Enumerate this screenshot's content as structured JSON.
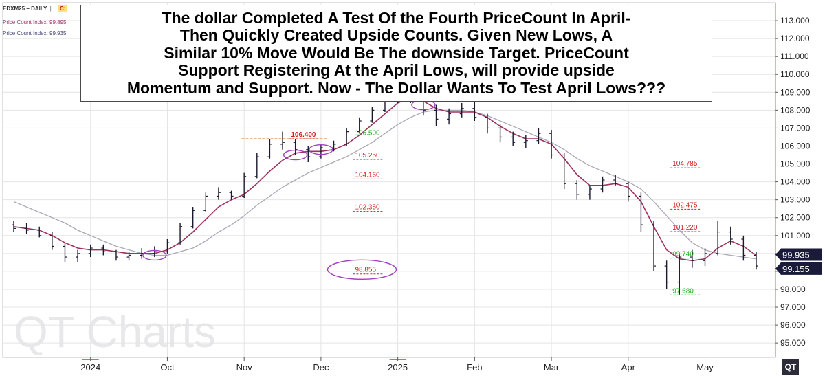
{
  "header": {
    "symbol": "EDXM25 ~ DAILY",
    "tag": "C:",
    "indicators": [
      {
        "label": "Price Count Index: 99.895",
        "color": "#9a3a6a"
      },
      {
        "label": "Price Count Index: 99.935",
        "color": "#4a4a7a"
      }
    ]
  },
  "annotation": {
    "text": "The dollar Completed A Test Of the Fourth PriceCount In April-\nThen Quickly Created Upside Counts.  Given New Lows,  A\nSimilar 10% Move Would Be The downside Target.  PriceCount\nSupport Registering At the April Lows, will provide upside\nMomentum and  Support. Now - The Dollar Wants To Test April Lows???"
  },
  "watermark": "QT Charts",
  "logo": "QT",
  "colors": {
    "bars": "#1a1a2e",
    "fast_ma": "#a0305e",
    "slow_ma": "#a8a8b8",
    "circle": "#a040c0",
    "level_red": "#d02020",
    "level_green": "#20b020",
    "tag_fill": "#1a1a3a"
  },
  "chart_data": {
    "type": "ohlc",
    "ylim": [
      94.2,
      114.0
    ],
    "y_ticks": [
      "113.000",
      "112.000",
      "111.000",
      "110.000",
      "109.000",
      "108.000",
      "107.000",
      "106.000",
      "105.000",
      "104.000",
      "103.000",
      "102.000",
      "101.000",
      "100.000",
      "99.000",
      "98.000",
      "97.000",
      "96.000",
      "95.000"
    ],
    "x_ticks": [
      {
        "label": "2024",
        "i": 6,
        "year": true
      },
      {
        "label": "Oct",
        "i": 12
      },
      {
        "label": "Nov",
        "i": 18
      },
      {
        "label": "Dec",
        "i": 24
      },
      {
        "label": "2025",
        "i": 30,
        "year": true
      },
      {
        "label": "Feb",
        "i": 36
      },
      {
        "label": "Mar",
        "i": 42
      },
      {
        "label": "Apr",
        "i": 48
      },
      {
        "label": "May",
        "i": 54
      }
    ],
    "bars": [
      [
        101.6,
        101.8,
        101.2,
        101.4
      ],
      [
        101.4,
        101.7,
        101.1,
        101.3
      ],
      [
        101.3,
        101.5,
        100.9,
        101.0
      ],
      [
        101.0,
        101.2,
        100.2,
        100.4
      ],
      [
        100.4,
        100.6,
        99.5,
        99.8
      ],
      [
        99.8,
        100.2,
        99.5,
        100.0
      ],
      [
        100.0,
        100.5,
        99.8,
        100.3
      ],
      [
        100.3,
        100.5,
        99.9,
        100.1
      ],
      [
        100.1,
        100.2,
        99.6,
        99.8
      ],
      [
        99.8,
        100.1,
        99.6,
        99.9
      ],
      [
        99.9,
        100.3,
        99.7,
        100.0
      ],
      [
        100.0,
        100.4,
        99.8,
        100.1
      ],
      [
        100.1,
        100.8,
        100.0,
        100.6
      ],
      [
        100.6,
        101.7,
        100.5,
        101.5
      ],
      [
        101.5,
        102.6,
        101.4,
        102.4
      ],
      [
        102.4,
        103.4,
        102.3,
        103.2
      ],
      [
        103.2,
        103.7,
        103.0,
        103.4
      ],
      [
        103.4,
        103.5,
        103.0,
        103.2
      ],
      [
        103.2,
        104.5,
        103.1,
        104.3
      ],
      [
        104.3,
        105.6,
        104.2,
        105.4
      ],
      [
        105.4,
        106.4,
        105.3,
        106.1
      ],
      [
        106.1,
        106.8,
        105.8,
        106.2
      ],
      [
        106.2,
        106.4,
        105.5,
        105.8
      ],
      [
        105.8,
        106.0,
        105.1,
        105.4
      ],
      [
        105.4,
        106.1,
        105.3,
        105.9
      ],
      [
        105.9,
        106.3,
        105.7,
        106.1
      ],
      [
        106.1,
        107.0,
        106.0,
        106.8
      ],
      [
        106.8,
        107.6,
        106.7,
        107.4
      ],
      [
        107.4,
        108.2,
        107.3,
        108.0
      ],
      [
        108.0,
        108.8,
        107.9,
        108.5
      ],
      [
        108.5,
        109.4,
        108.4,
        109.0
      ],
      [
        109.0,
        109.6,
        108.4,
        108.7
      ],
      [
        108.7,
        108.9,
        107.7,
        108.0
      ],
      [
        108.0,
        108.3,
        107.1,
        107.5
      ],
      [
        107.5,
        108.1,
        107.2,
        107.8
      ],
      [
        107.8,
        108.4,
        107.6,
        108.1
      ],
      [
        108.1,
        108.5,
        107.4,
        107.6
      ],
      [
        107.6,
        107.8,
        106.7,
        107.0
      ],
      [
        107.0,
        107.2,
        106.2,
        106.5
      ],
      [
        106.5,
        106.8,
        106.0,
        106.2
      ],
      [
        106.2,
        106.6,
        105.9,
        106.3
      ],
      [
        106.3,
        107.0,
        106.1,
        106.7
      ],
      [
        106.7,
        106.9,
        105.3,
        105.5
      ],
      [
        105.5,
        105.6,
        103.6,
        103.9
      ],
      [
        103.9,
        104.1,
        103.0,
        103.3
      ],
      [
        103.3,
        103.8,
        103.0,
        103.6
      ],
      [
        103.6,
        104.3,
        103.4,
        104.1
      ],
      [
        104.1,
        104.4,
        103.8,
        103.9
      ],
      [
        103.9,
        104.0,
        102.9,
        103.2
      ],
      [
        103.2,
        103.4,
        101.2,
        101.6
      ],
      [
        101.6,
        101.8,
        99.0,
        99.3
      ],
      [
        99.3,
        99.6,
        98.0,
        98.4
      ],
      [
        98.4,
        100.0,
        97.7,
        99.8
      ],
      [
        99.8,
        100.2,
        99.2,
        99.6
      ],
      [
        99.6,
        100.3,
        99.3,
        100.0
      ],
      [
        100.0,
        101.8,
        99.9,
        101.2
      ],
      [
        101.2,
        101.5,
        100.5,
        100.8
      ],
      [
        100.8,
        101.0,
        99.6,
        99.9
      ],
      [
        99.9,
        100.1,
        99.1,
        99.3
      ]
    ],
    "fast_ma": [
      101.5,
      101.4,
      101.3,
      101.0,
      100.6,
      100.3,
      100.2,
      100.2,
      100.1,
      100.0,
      100.0,
      100.0,
      100.2,
      100.6,
      101.2,
      101.9,
      102.6,
      103.0,
      103.3,
      103.9,
      104.6,
      105.2,
      105.6,
      105.7,
      105.7,
      105.8,
      106.1,
      106.6,
      107.2,
      107.8,
      108.4,
      108.7,
      108.5,
      108.1,
      107.9,
      107.9,
      107.9,
      107.6,
      107.1,
      106.7,
      106.4,
      106.4,
      106.1,
      105.3,
      104.4,
      103.8,
      103.8,
      103.9,
      103.7,
      102.9,
      101.5,
      100.2,
      99.7,
      99.6,
      99.7,
      100.3,
      100.7,
      100.4,
      99.9
    ],
    "slow_ma": [
      102.9,
      102.6,
      102.3,
      102.0,
      101.7,
      101.3,
      101.0,
      100.7,
      100.4,
      100.2,
      100.0,
      99.9,
      99.9,
      100.1,
      100.3,
      100.7,
      101.2,
      101.6,
      102.1,
      102.7,
      103.2,
      103.7,
      104.1,
      104.5,
      104.8,
      105.1,
      105.4,
      105.8,
      106.2,
      106.7,
      107.2,
      107.6,
      107.9,
      108.0,
      108.0,
      108.0,
      107.9,
      107.7,
      107.4,
      107.1,
      106.8,
      106.5,
      106.2,
      105.8,
      105.3,
      104.9,
      104.6,
      104.3,
      104.0,
      103.6,
      102.9,
      102.1,
      101.3,
      100.6,
      100.2,
      100.0,
      99.9,
      99.8,
      99.7
    ],
    "last_price_tags": [
      "99.935",
      "99.155"
    ],
    "level_labels": [
      {
        "text": "106.400",
        "price": 106.4,
        "color": "red",
        "i": 21.5,
        "bold": true
      },
      {
        "text": "106.500",
        "price": 106.5,
        "color": "green",
        "i": 26.5
      },
      {
        "text": "105.250",
        "price": 105.25,
        "color": "red",
        "i": 26.5
      },
      {
        "text": "104.160",
        "price": 104.16,
        "color": "red",
        "i": 26.5
      },
      {
        "text": "102.350",
        "price": 102.35,
        "color": "red",
        "i": 26.5
      },
      {
        "text": "98.855",
        "price": 98.855,
        "color": "red",
        "i": 26.5
      },
      {
        "text": "104.785",
        "price": 104.785,
        "color": "red",
        "i": 51.3
      },
      {
        "text": "102.475",
        "price": 102.475,
        "color": "red",
        "i": 51.3
      },
      {
        "text": "101.220",
        "price": 101.22,
        "color": "red",
        "i": 51.3
      },
      {
        "text": "99.740",
        "price": 99.74,
        "color": "green",
        "i": 51.3
      },
      {
        "text": "97.680",
        "price": 97.68,
        "color": "green",
        "i": 51.3
      }
    ],
    "circles": [
      {
        "i": 11,
        "price": 99.9
      },
      {
        "i": 22,
        "price": 105.5
      },
      {
        "i": 24,
        "price": 105.8
      },
      {
        "i": 32,
        "price": 108.3
      },
      {
        "i": 27.2,
        "price": 99.1,
        "big": true
      }
    ],
    "grid": true,
    "watermark": "QT Charts"
  }
}
